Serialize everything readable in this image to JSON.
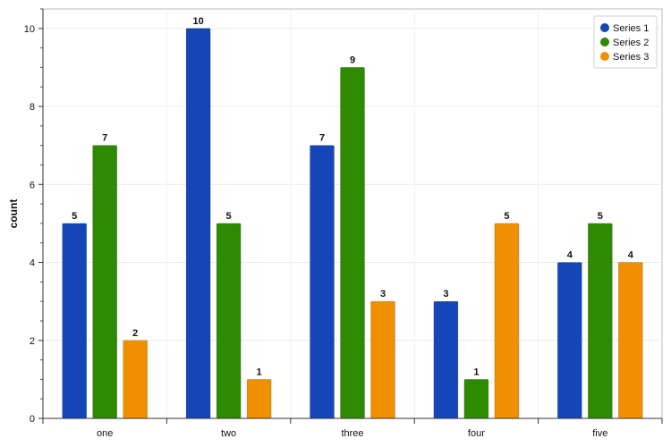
{
  "chart_data": {
    "type": "bar",
    "categories": [
      "one",
      "two",
      "three",
      "four",
      "five"
    ],
    "series": [
      {
        "name": "Series 1",
        "values": [
          5,
          10,
          7,
          3,
          4
        ],
        "color": "#1446b8"
      },
      {
        "name": "Series 2",
        "values": [
          7,
          5,
          9,
          1,
          5
        ],
        "color": "#2e8a00"
      },
      {
        "name": "Series 3",
        "values": [
          2,
          1,
          3,
          5,
          4
        ],
        "color": "#f09000"
      }
    ],
    "title": "",
    "xlabel": "",
    "ylabel": "count",
    "ylim": [
      0,
      10.5
    ],
    "yticks": [
      0,
      2,
      4,
      6,
      8,
      10
    ],
    "grid": true,
    "legend_position": "top-right",
    "data_labels": true
  }
}
